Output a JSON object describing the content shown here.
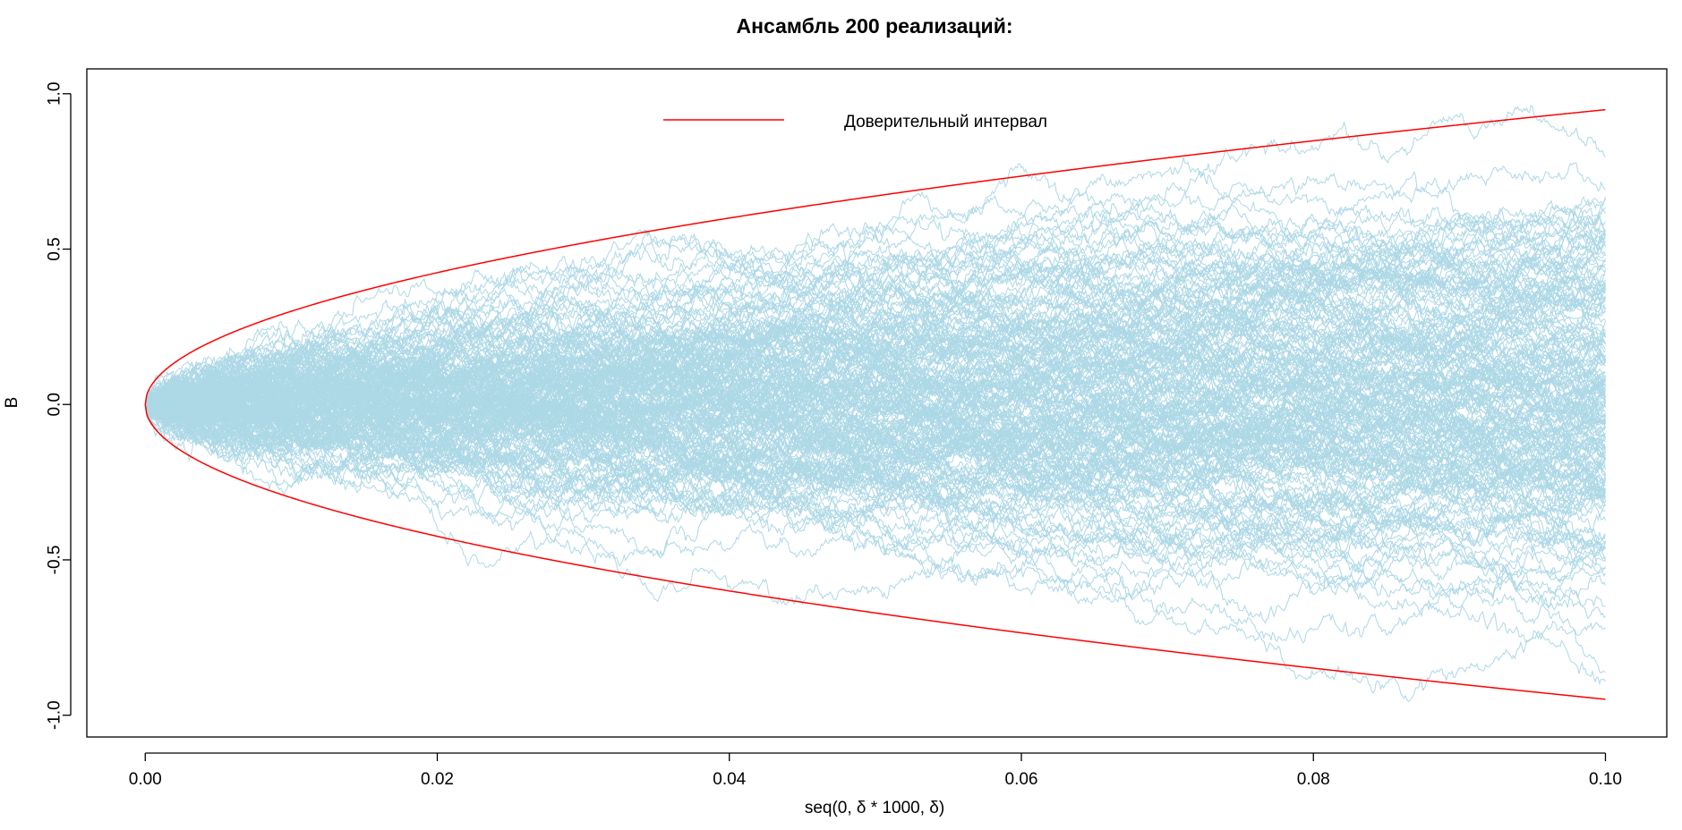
{
  "chart_data": {
    "type": "line",
    "title": "Ансамбль 200 реализаций:",
    "xlabel": "seq(0, δ * 1000, δ)",
    "ylabel": "B",
    "xlim": [
      -0.004,
      0.1042
    ],
    "ylim": [
      -1.07,
      1.08
    ],
    "x_ticks": [
      0.0,
      0.02,
      0.04,
      0.06,
      0.08,
      0.1
    ],
    "x_tick_labels": [
      "0.00",
      "0.02",
      "0.04",
      "0.06",
      "0.08",
      "0.10"
    ],
    "y_ticks": [
      -1.0,
      -0.5,
      0.0,
      0.5,
      1.0
    ],
    "y_tick_labels": [
      "-1.0",
      "-0.5",
      "0.0",
      "0.5",
      "1.0"
    ],
    "grid": false,
    "legend": {
      "position": "top-center",
      "entries": [
        {
          "label": "Доверительный интервал",
          "color": "#ff0000"
        }
      ]
    },
    "n_realizations": 200,
    "delta": 0.0001,
    "n_steps": 1000,
    "realization_color": "#add8e6",
    "series": [
      {
        "name": "Доверительный интервал",
        "color": "#ff0000",
        "x": [
          0,
          0.005,
          0.01,
          0.02,
          0.03,
          0.04,
          0.05,
          0.06,
          0.07,
          0.08,
          0.09,
          0.1
        ],
        "y_upper": [
          0,
          0.212,
          0.3,
          0.424,
          0.52,
          0.6,
          0.671,
          0.735,
          0.794,
          0.849,
          0.9,
          0.949
        ],
        "y_lower": [
          0,
          -0.212,
          -0.3,
          -0.424,
          -0.52,
          -0.6,
          -0.671,
          -0.735,
          -0.794,
          -0.849,
          -0.9,
          -0.949
        ]
      }
    ]
  }
}
